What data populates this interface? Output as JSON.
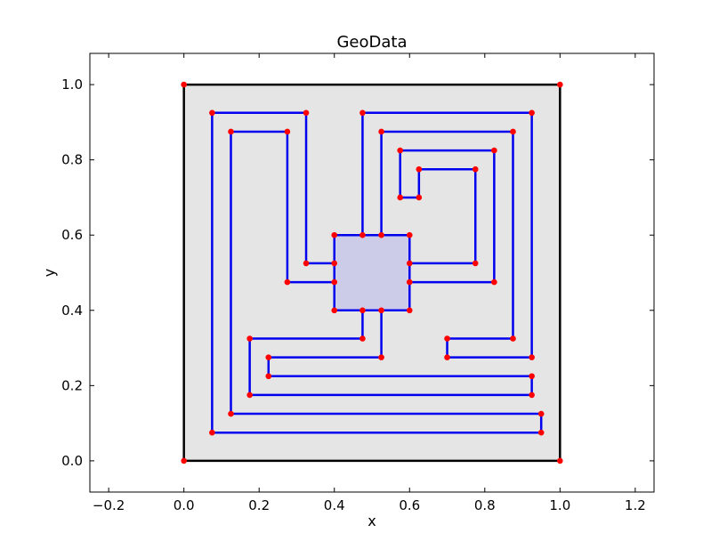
{
  "chart_data": {
    "type": "line",
    "title": "GeoData",
    "xlabel": "x",
    "ylabel": "y",
    "xlim": [
      -0.25,
      1.25
    ],
    "ylim": [
      -0.083,
      1.083
    ],
    "xticks": [
      "−0.2",
      "0.0",
      "0.2",
      "0.4",
      "0.6",
      "0.8",
      "1.0",
      "1.2"
    ],
    "xtick_values": [
      -0.2,
      0.0,
      0.2,
      0.4,
      0.6,
      0.8,
      1.0,
      1.2
    ],
    "yticks": [
      "0.0",
      "0.2",
      "0.4",
      "0.6",
      "0.8",
      "1.0"
    ],
    "ytick_values": [
      0.0,
      0.2,
      0.4,
      0.6,
      0.8,
      1.0
    ],
    "grid": false,
    "colors": {
      "outer_fill": "#e5e5e5",
      "outer_edge": "#000000",
      "inner_fill": "#cccce8",
      "segment": "#0000ee",
      "vertex": "#ff0000"
    },
    "outer_boundary": [
      [
        0,
        0
      ],
      [
        1,
        0
      ],
      [
        1,
        1
      ],
      [
        0,
        1
      ]
    ],
    "inner_square": [
      [
        0.4,
        0.4
      ],
      [
        0.6,
        0.4
      ],
      [
        0.6,
        0.6
      ],
      [
        0.4,
        0.6
      ]
    ],
    "segments": [
      [
        [
          0.475,
          0.6
        ],
        [
          0.475,
          0.925
        ],
        [
          0.925,
          0.925
        ],
        [
          0.925,
          0.275
        ],
        [
          0.7,
          0.275
        ],
        [
          0.7,
          0.325
        ],
        [
          0.875,
          0.325
        ],
        [
          0.875,
          0.875
        ],
        [
          0.525,
          0.875
        ],
        [
          0.525,
          0.6
        ]
      ],
      [
        [
          0.6,
          0.525
        ],
        [
          0.775,
          0.525
        ],
        [
          0.775,
          0.775
        ],
        [
          0.625,
          0.775
        ],
        [
          0.625,
          0.7
        ],
        [
          0.575,
          0.7
        ],
        [
          0.575,
          0.825
        ],
        [
          0.825,
          0.825
        ],
        [
          0.825,
          0.475
        ],
        [
          0.6,
          0.475
        ]
      ],
      [
        [
          0.525,
          0.4
        ],
        [
          0.525,
          0.275
        ],
        [
          0.225,
          0.275
        ],
        [
          0.225,
          0.225
        ],
        [
          0.925,
          0.225
        ],
        [
          0.925,
          0.175
        ],
        [
          0.175,
          0.175
        ],
        [
          0.175,
          0.325
        ],
        [
          0.475,
          0.325
        ],
        [
          0.475,
          0.4
        ]
      ],
      [
        [
          0.4,
          0.475
        ],
        [
          0.275,
          0.475
        ],
        [
          0.275,
          0.875
        ],
        [
          0.125,
          0.875
        ],
        [
          0.125,
          0.125
        ],
        [
          0.95,
          0.125
        ],
        [
          0.95,
          0.075
        ],
        [
          0.075,
          0.075
        ],
        [
          0.075,
          0.925
        ],
        [
          0.325,
          0.925
        ],
        [
          0.325,
          0.525
        ],
        [
          0.4,
          0.525
        ]
      ]
    ]
  }
}
